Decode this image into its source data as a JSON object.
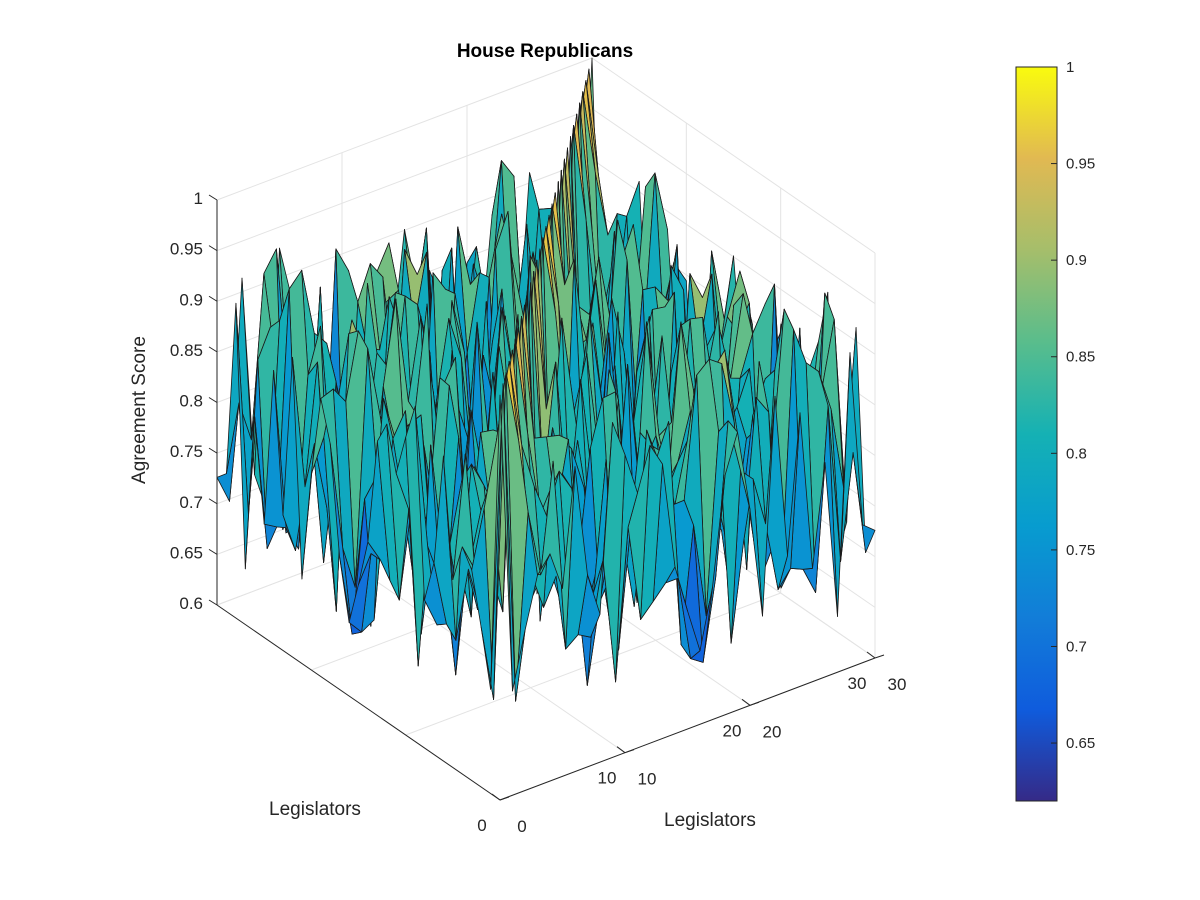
{
  "chart_data": {
    "type": "surface",
    "title": "House Republicans",
    "xlabel": "Legislators",
    "ylabel": "Legislators",
    "zlabel": "Agreement Score",
    "xlim": [
      0,
      30
    ],
    "ylim": [
      0,
      30
    ],
    "zlim": [
      0.6,
      1
    ],
    "x_ticks": [
      0,
      10,
      20,
      30
    ],
    "y_ticks": [
      0,
      10,
      20,
      30
    ],
    "z_ticks": [
      0.6,
      0.65,
      0.7,
      0.75,
      0.8,
      0.85,
      0.9,
      0.95,
      1
    ],
    "z_tick_labels": [
      "0.6",
      "0.65",
      "0.7",
      "0.75",
      "0.8",
      "0.85",
      "0.9",
      "0.95",
      "1"
    ],
    "grid": true,
    "colormap": "parula",
    "grid_size": 30,
    "diagonal_value": 1,
    "values_note_range": [
      0.62,
      1
    ],
    "colorbar": {
      "position": "right",
      "range": [
        0.62,
        1
      ],
      "ticks": [
        0.65,
        0.7,
        0.75,
        0.8,
        0.85,
        0.9,
        0.95,
        1
      ],
      "tick_labels": [
        "0.65",
        "0.7",
        "0.75",
        "0.8",
        "0.85",
        "0.9",
        "0.95",
        "1"
      ]
    }
  }
}
